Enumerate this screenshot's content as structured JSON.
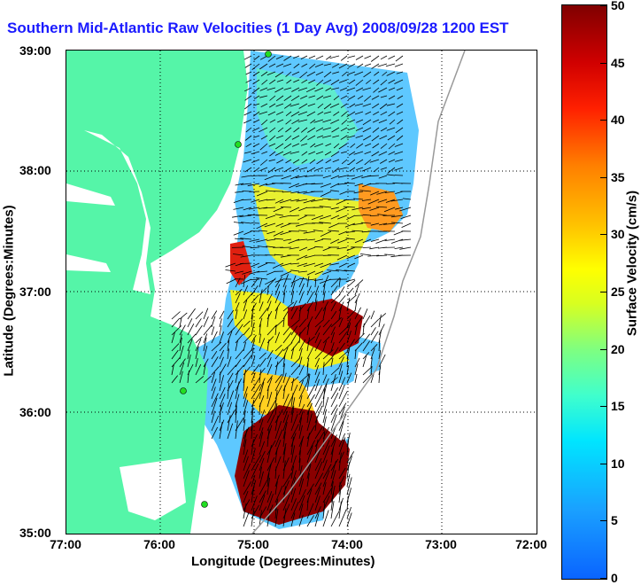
{
  "title": "Southern Mid-Atlantic Raw Velocities (1 Day Avg) 2008/09/28 1200 EST",
  "x_axis": {
    "label": "Longitude (Degrees:Minutes)",
    "ticks": [
      "77:00",
      "76:00",
      "75:00",
      "74:00",
      "73:00",
      "72:00"
    ]
  },
  "y_axis": {
    "label": "Latitude (Degrees:Minutes)",
    "ticks": [
      "39:00",
      "38:00",
      "37:00",
      "36:00",
      "35:00"
    ]
  },
  "colorbar": {
    "label": "Surface Velocity (cm/s)",
    "ticks": [
      "50",
      "45",
      "40",
      "35",
      "30",
      "25",
      "20",
      "15",
      "10",
      "5",
      "0"
    ],
    "min": 0,
    "max": 50
  },
  "map": {
    "lon_range": [
      -77,
      -72
    ],
    "lat_range": [
      35,
      39
    ],
    "land_color": "#55f5a8",
    "station_color": "#22dd22"
  }
}
